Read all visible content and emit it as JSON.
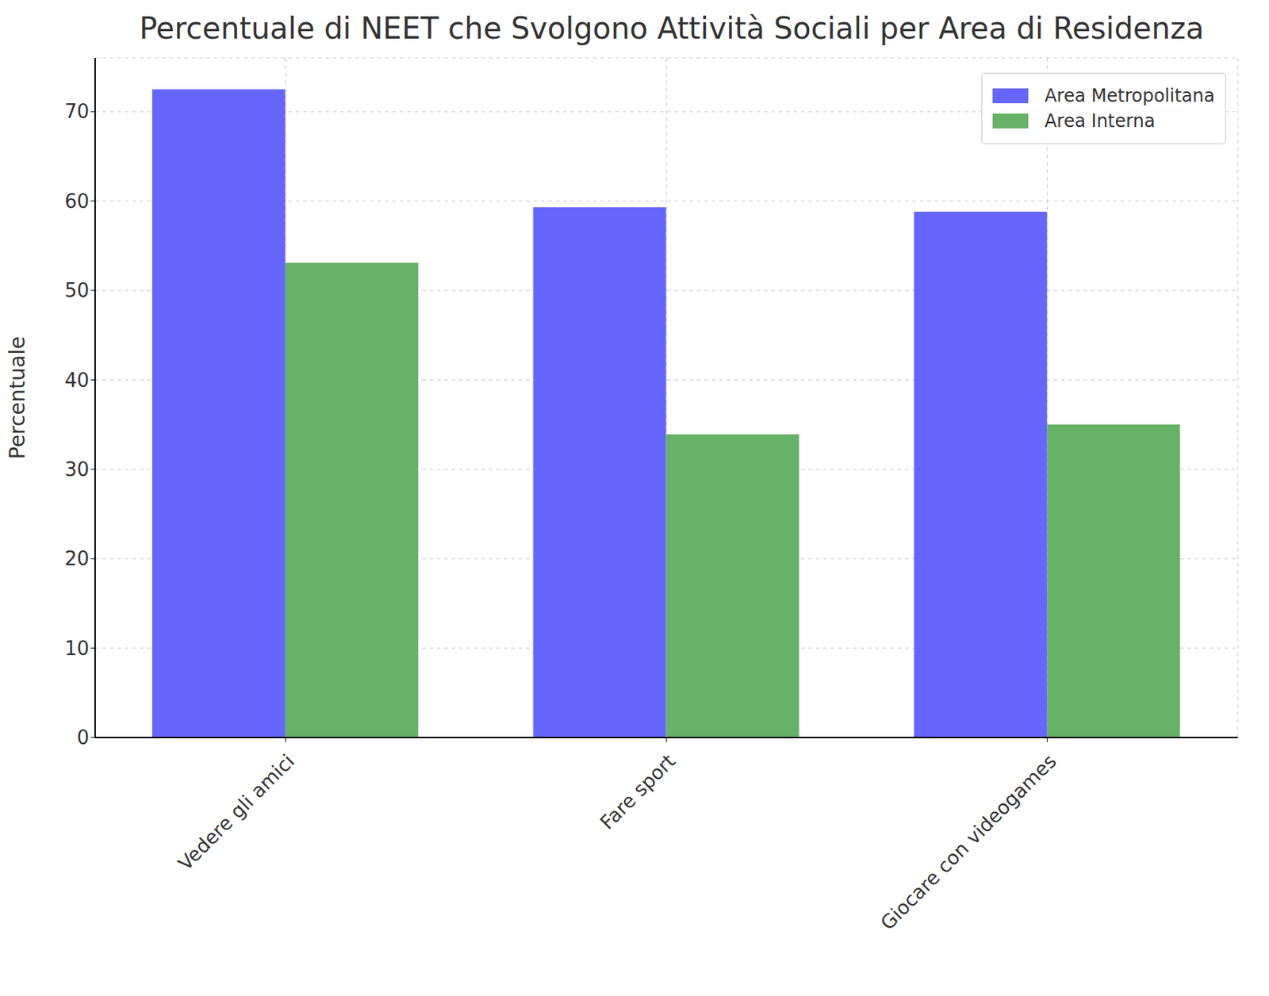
{
  "chart_data": {
    "type": "bar",
    "title": "Percentuale di NEET che Svolgono Attività Sociali per Area di Residenza",
    "y_label": "Percentuale",
    "categories": [
      "Vedere gli amici",
      "Fare sport",
      "Giocare con videogames"
    ],
    "series": [
      {
        "name": "Area Metropolitana",
        "color": "#6666ff",
        "values": [
          72.5,
          59.3,
          58.8
        ]
      },
      {
        "name": "Area Interna",
        "color": "#66b266",
        "values": [
          53.1,
          33.9,
          35.0
        ]
      }
    ],
    "ylim": [
      0,
      76
    ],
    "yticks": [
      0,
      10,
      20,
      30,
      40,
      50,
      60,
      70
    ],
    "grid": true,
    "legend": "upper right"
  }
}
